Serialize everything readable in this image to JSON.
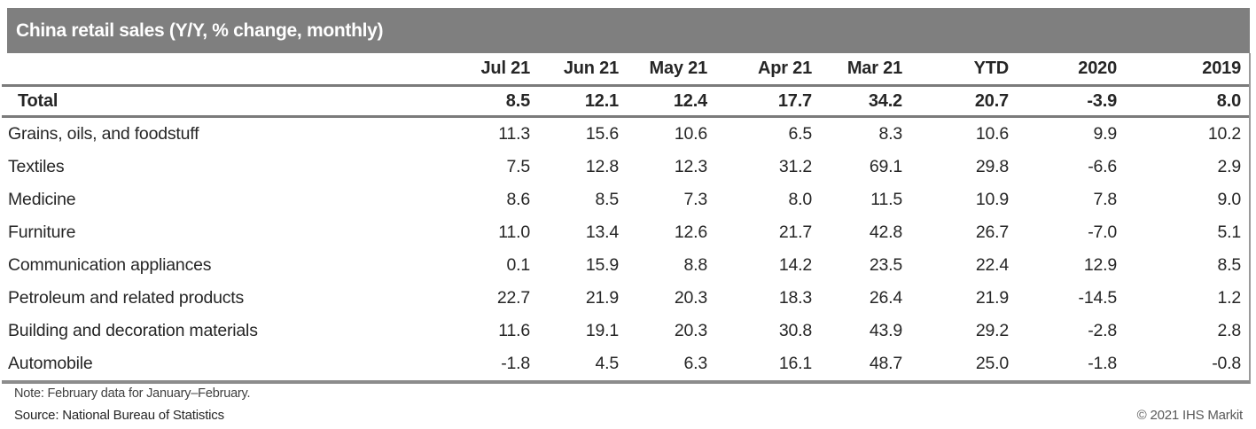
{
  "chart_data": {
    "type": "table",
    "title": "China retail sales (Y/Y, % change, monthly)",
    "columns": [
      "Jul 21",
      "Jun 21",
      "May 21",
      "Apr 21",
      "Mar 21",
      "YTD",
      "2020",
      "2019"
    ],
    "total": {
      "label": "Total",
      "values": [
        "8.5",
        "12.1",
        "12.4",
        "17.7",
        "34.2",
        "20.7",
        "-3.9",
        "8.0"
      ]
    },
    "rows": [
      {
        "label": "Grains, oils, and foodstuff",
        "values": [
          "11.3",
          "15.6",
          "10.6",
          "6.5",
          "8.3",
          "10.6",
          "9.9",
          "10.2"
        ]
      },
      {
        "label": "Textiles",
        "values": [
          "7.5",
          "12.8",
          "12.3",
          "31.2",
          "69.1",
          "29.8",
          "-6.6",
          "2.9"
        ]
      },
      {
        "label": "Medicine",
        "values": [
          "8.6",
          "8.5",
          "7.3",
          "8.0",
          "11.5",
          "10.9",
          "7.8",
          "9.0"
        ]
      },
      {
        "label": "Furniture",
        "values": [
          "11.0",
          "13.4",
          "12.6",
          "21.7",
          "42.8",
          "26.7",
          "-7.0",
          "5.1"
        ]
      },
      {
        "label": "Communication appliances",
        "values": [
          "0.1",
          "15.9",
          "8.8",
          "14.2",
          "23.5",
          "22.4",
          "12.9",
          "8.5"
        ]
      },
      {
        "label": "Petroleum and related products",
        "values": [
          "22.7",
          "21.9",
          "20.3",
          "18.3",
          "26.4",
          "21.9",
          "-14.5",
          "1.2"
        ]
      },
      {
        "label": "Building and decoration materials",
        "values": [
          "11.6",
          "19.1",
          "20.3",
          "30.8",
          "43.9",
          "29.2",
          "-2.8",
          "2.8"
        ]
      },
      {
        "label": "Automobile",
        "values": [
          "-1.8",
          "4.5",
          "6.3",
          "16.1",
          "48.7",
          "25.0",
          "-1.8",
          "-0.8"
        ]
      }
    ]
  },
  "footer": {
    "note": "Note: February data for January–February.",
    "source": "Source: National Bureau of Statistics",
    "copyright": "© 2021 IHS Markit"
  },
  "colors": {
    "title_bar_bg": "#7f7f7f",
    "title_text": "#ffffff",
    "rule_dark": "#7b7b7b",
    "rule_bottom": "#8c8c8c",
    "body_text": "#262626",
    "footer_muted": "#595959"
  }
}
